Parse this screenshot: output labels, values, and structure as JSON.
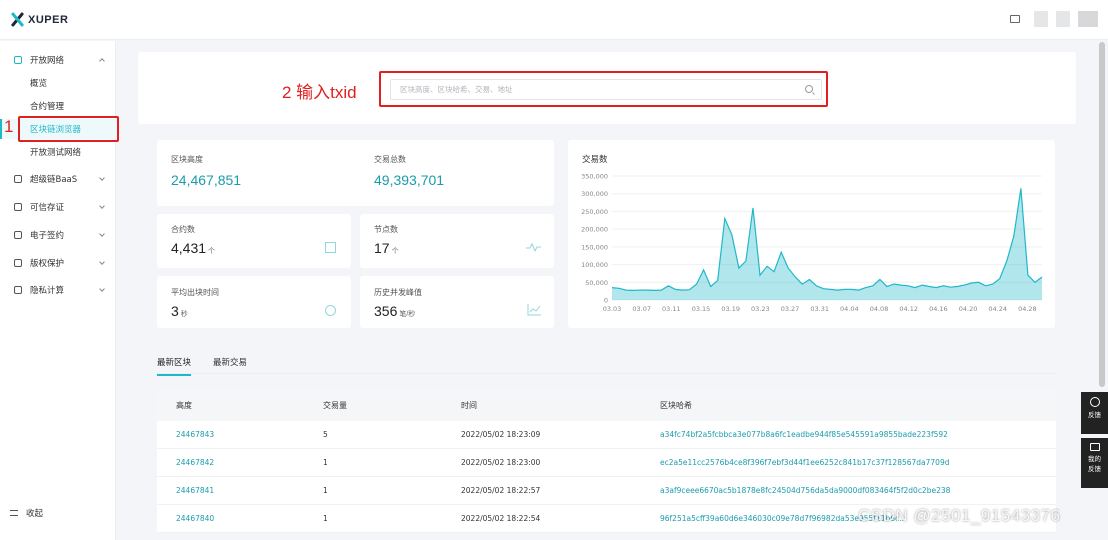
{
  "brand": {
    "name": "XUPER"
  },
  "sidebar": {
    "groups": [
      {
        "label": "开放网络",
        "icon": "network-icon",
        "open": true
      },
      {
        "label": "超级链BaaS",
        "icon": "baas-icon"
      },
      {
        "label": "可信存证",
        "icon": "evidence-icon"
      },
      {
        "label": "电子签约",
        "icon": "contract-sign-icon"
      },
      {
        "label": "版权保护",
        "icon": "copyright-icon"
      },
      {
        "label": "隐私计算",
        "icon": "privacy-compute-icon"
      }
    ],
    "sub_items": [
      {
        "label": "概览"
      },
      {
        "label": "合约管理"
      },
      {
        "label": "区块链浏览器",
        "active": true
      },
      {
        "label": "开放测试网络"
      }
    ],
    "collapse_label": "收起"
  },
  "annotations": {
    "step1": "1",
    "step2": "2 输入txid",
    "color": "#e02020"
  },
  "search": {
    "placeholder": "区块高度、区块哈希、交易、地址"
  },
  "stats": {
    "block_height": {
      "label": "区块高度",
      "value": "24,467,851"
    },
    "tx_total": {
      "label": "交易总数",
      "value": "49,393,701"
    },
    "contracts": {
      "label": "合约数",
      "value": "4,431",
      "unit": "个"
    },
    "nodes": {
      "label": "节点数",
      "value": "17",
      "unit": "个"
    },
    "avg_block_time": {
      "label": "平均出块时间",
      "value": "3",
      "unit": "秒"
    },
    "peak_tps": {
      "label": "历史并发峰值",
      "value": "356",
      "unit": "笔/秒"
    }
  },
  "chart_data": {
    "type": "area",
    "title": "交易数",
    "xlabel": "",
    "ylabel": "",
    "ylim": [
      0,
      350000
    ],
    "yticks": [
      "350,000",
      "300,000",
      "250,000",
      "200,000",
      "150,000",
      "100,000",
      "50,000",
      "0"
    ],
    "xticks": [
      "03.03",
      "03.07",
      "03.11",
      "03.15",
      "03.19",
      "03.23",
      "03.27",
      "03.31",
      "04.04",
      "04.08",
      "04.12",
      "04.16",
      "04.20",
      "04.24",
      "04.28"
    ],
    "x_start_label": "03.03",
    "values": [
      35000,
      33000,
      28000,
      27000,
      28000,
      28000,
      27000,
      28000,
      40000,
      30000,
      28000,
      29000,
      45000,
      85000,
      38000,
      55000,
      230000,
      185000,
      90000,
      110000,
      260000,
      70000,
      95000,
      80000,
      135000,
      90000,
      65000,
      45000,
      58000,
      40000,
      32000,
      30000,
      28000,
      30000,
      30000,
      28000,
      35000,
      40000,
      58000,
      38000,
      45000,
      42000,
      40000,
      35000,
      42000,
      38000,
      35000,
      40000,
      36000,
      38000,
      42000,
      48000,
      50000,
      40000,
      45000,
      60000,
      110000,
      180000,
      315000,
      70000,
      50000,
      65000
    ],
    "color": "#1fb8c9",
    "grid": true
  },
  "tabs": [
    {
      "label": "最新区块",
      "active": true
    },
    {
      "label": "最新交易"
    }
  ],
  "table": {
    "headers": [
      "高度",
      "交易量",
      "时间",
      "区块哈希"
    ],
    "rows": [
      [
        "24467843",
        "5",
        "2022/05/02 18:23:09",
        "a34fc74bf2a5fcbbca3e077b8a6fc1eadbe944f85e545591a9855bade223f592"
      ],
      [
        "24467842",
        "1",
        "2022/05/02 18:23:00",
        "ec2a5e11cc2576b4ce8f396f7ebf3d44f1ee6252c841b17c37f128567da7709d"
      ],
      [
        "24467841",
        "1",
        "2022/05/02 18:22:57",
        "a3af9ceee6670ac5b1878e8fc24504d756da5da9000df083464f5f2d0c2be238"
      ],
      [
        "24467840",
        "1",
        "2022/05/02 18:22:54",
        "96f251a5cff39a60d6e346030c09e78d7f96982da53e955f11b6c..."
      ]
    ]
  },
  "float_buttons": {
    "feedback": "反馈",
    "my_feedback_line1": "我的",
    "my_feedback_line2": "反馈"
  },
  "watermark": "CSDN @2501_91543376"
}
